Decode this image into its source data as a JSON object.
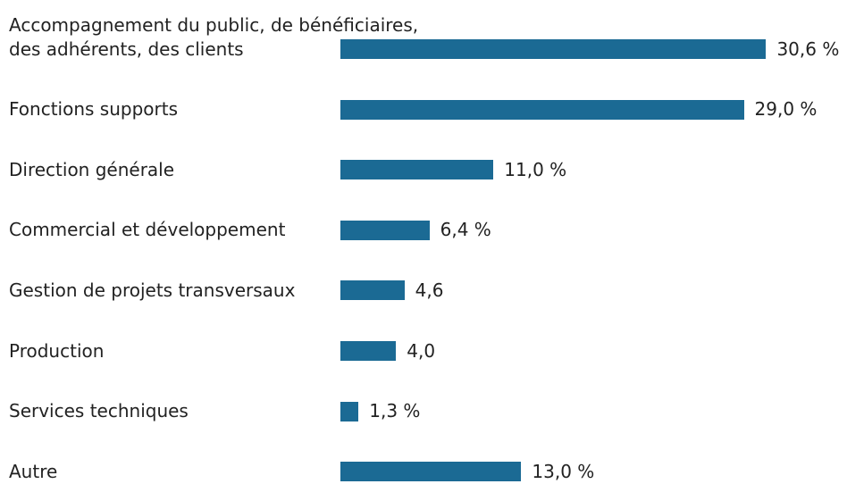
{
  "chart_data": {
    "type": "bar",
    "orientation": "horizontal",
    "color": "#1b6a94",
    "categories": [
      "Accompagnement du public, de bénéficiaires,\ndes adhérents, des clients",
      "Fonctions supports",
      "Direction générale",
      "Commercial et développement",
      "Gestion de projets transversaux",
      "Production",
      "Services techniques",
      "Autre"
    ],
    "values": [
      30.6,
      29.0,
      11.0,
      6.4,
      4.6,
      4.0,
      1.3,
      13.0
    ],
    "value_labels": [
      "30,6 %",
      "29,0 %",
      "11,0 %",
      "6,4 %",
      "4,6",
      "4,0",
      "1,3 %",
      "13,0 %"
    ]
  }
}
